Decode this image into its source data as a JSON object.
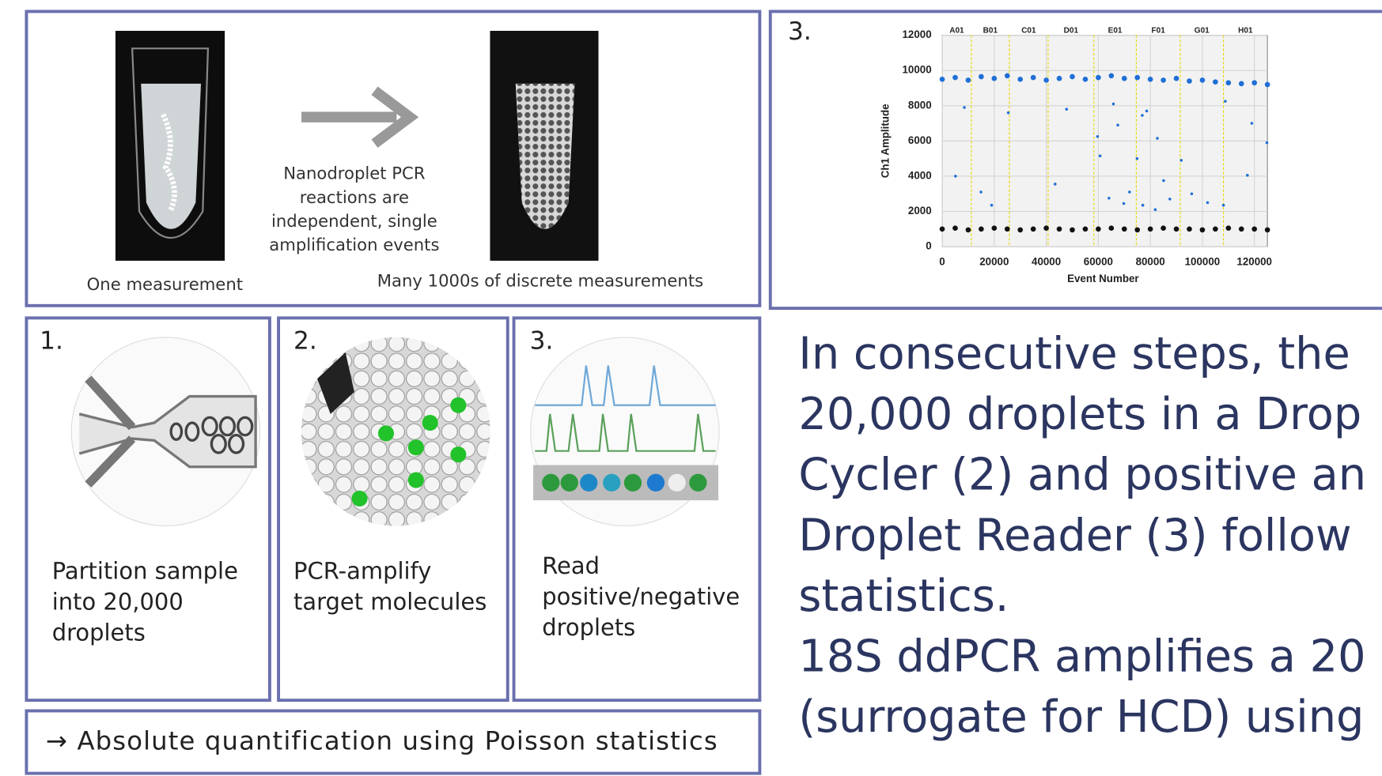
{
  "top_left": {
    "caption_left": "One measurement",
    "arrow_text": [
      "Nanodroplet PCR",
      "reactions are",
      "independent, single",
      "amplification events"
    ],
    "caption_right": "Many 1000s of discrete measurements"
  },
  "chart_panel": {
    "label": "3."
  },
  "chart_data": {
    "type": "scatter",
    "x_label": "Event Number",
    "y_label": "Ch1 Amplitude",
    "xlim": [
      0,
      125000
    ],
    "ylim": [
      0,
      12000
    ],
    "xticks": [
      0,
      20000,
      40000,
      60000,
      80000,
      100000,
      120000
    ],
    "yticks": [
      0,
      2000,
      4000,
      6000,
      8000,
      10000,
      12000
    ],
    "wells": [
      "A01",
      "B01",
      "C01",
      "D01",
      "E01",
      "F01",
      "G01",
      "H01"
    ],
    "well_boundaries": [
      11200,
      25800,
      40700,
      58300,
      74600,
      91500,
      108100
    ],
    "series": [
      {
        "color": "#1f6fd6",
        "x": [
          0,
          5000,
          10000,
          15000,
          20000,
          25000,
          30000,
          35000,
          40000,
          45000,
          50000,
          55000,
          60000,
          65000,
          70000,
          75000,
          80000,
          85000,
          90000,
          95000,
          100000,
          105000,
          110000,
          115000,
          120000,
          125000
        ],
        "values": [
          9500,
          9600,
          9450,
          9650,
          9550,
          9700,
          9500,
          9600,
          9450,
          9550,
          9650,
          9500,
          9600,
          9700,
          9550,
          9600,
          9500,
          9450,
          9550,
          9400,
          9450,
          9350,
          9300,
          9250,
          9300,
          9200
        ]
      },
      {
        "color": "#1f6fd6",
        "x": [
          5100,
          14900,
          19000,
          43400,
          8500,
          25400,
          47800,
          59700,
          60700,
          65800,
          67500,
          64100,
          69800,
          74900,
          76900,
          78600,
          82700,
          72000,
          77100,
          81900,
          91900,
          95900,
          102000,
          108100,
          108800,
          117300,
          119000,
          124800,
          85100,
          87500
        ],
        "values": [
          4000,
          3100,
          2350,
          3550,
          7900,
          7600,
          7800,
          6250,
          5150,
          8100,
          6900,
          2750,
          2450,
          5000,
          7450,
          7700,
          6150,
          3100,
          2350,
          2100,
          4900,
          3000,
          2500,
          2350,
          8250,
          4050,
          7000,
          5900,
          3750,
          2700
        ]
      },
      {
        "color": "#111111",
        "x": [
          0,
          5000,
          10000,
          15000,
          20000,
          25000,
          30000,
          35000,
          40000,
          45000,
          50000,
          55000,
          60000,
          65000,
          70000,
          75000,
          80000,
          85000,
          90000,
          95000,
          100000,
          105000,
          110000,
          115000,
          120000,
          125000
        ],
        "values": [
          1000,
          1050,
          950,
          1000,
          1050,
          1000,
          950,
          1000,
          1050,
          1000,
          950,
          1000,
          1000,
          1050,
          1000,
          950,
          1000,
          1050,
          1000,
          1000,
          950,
          1000,
          1050,
          1000,
          1000,
          950
        ]
      }
    ]
  },
  "steps": [
    {
      "label": "1.",
      "text": [
        "Partition sample",
        "into 20,000",
        "droplets"
      ]
    },
    {
      "label": "2.",
      "text": [
        "PCR-amplify",
        "target molecules"
      ]
    },
    {
      "label": "3.",
      "text": [
        "Read",
        "positive/negative",
        "droplets"
      ]
    }
  ],
  "conclusion": "→ Absolute quantification using Poisson statistics",
  "body_text": [
    "In consecutive steps, the",
    "20,000 droplets in a Drop",
    "Cycler (2) and positive an",
    "Droplet Reader (3) follow",
    "statistics.",
    "18S ddPCR amplifies a 20",
    "(surrogate for HCD) using"
  ]
}
